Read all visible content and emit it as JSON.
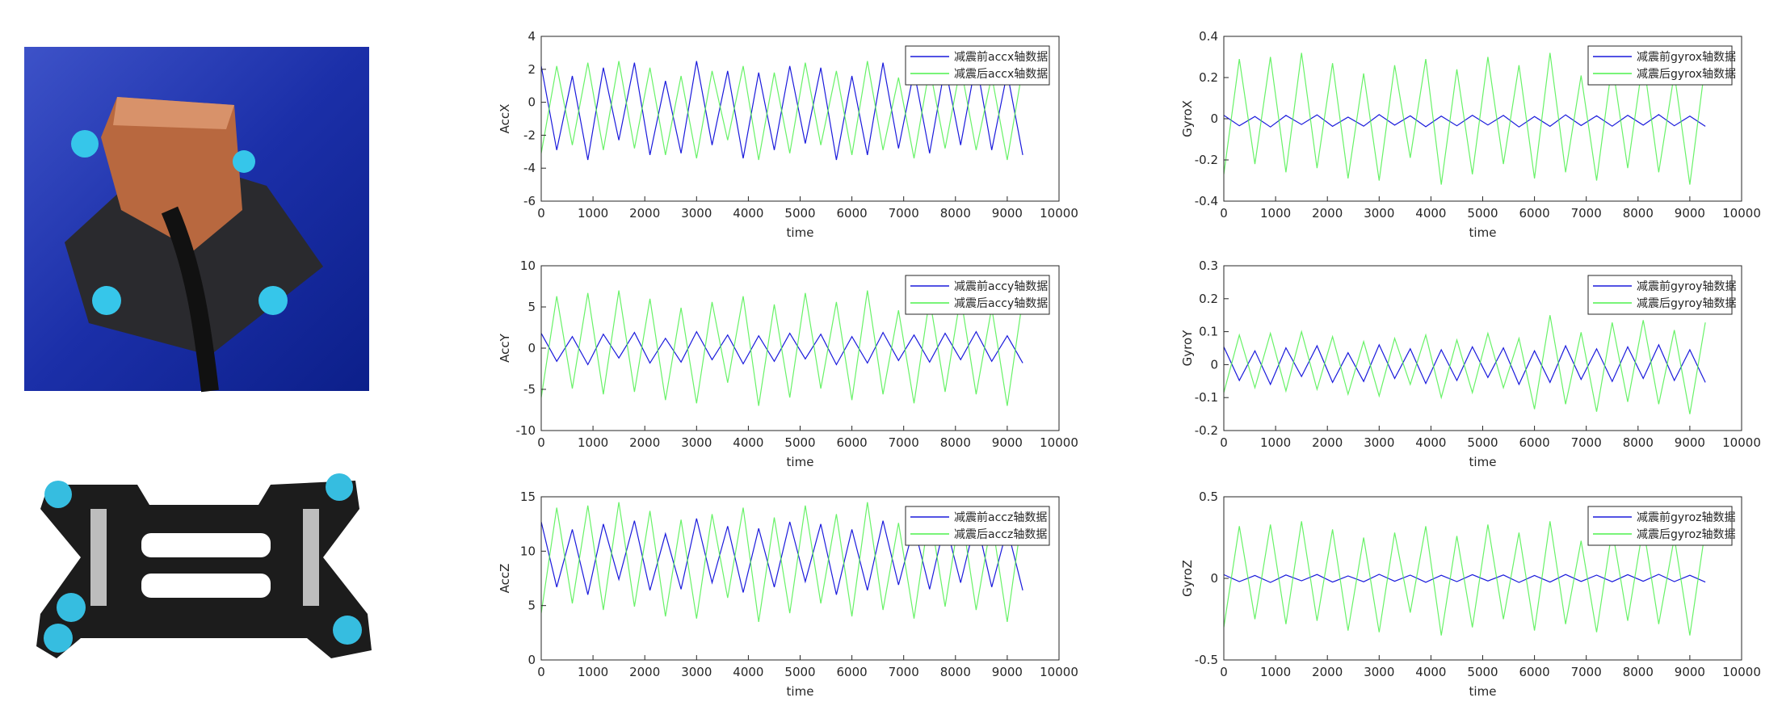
{
  "chart_data": [
    {
      "type": "line",
      "ylabel": "AccX",
      "xlabel": "time",
      "legend": "upper right",
      "x": [
        0,
        300,
        600,
        900,
        1200,
        1500,
        1800,
        2100,
        2400,
        2700,
        3000,
        3300,
        3600,
        3900,
        4200,
        4500,
        4800,
        5100,
        5400,
        5700,
        6000,
        6300,
        6600,
        6900,
        7200,
        7500,
        7800,
        8100,
        8400,
        8700,
        9000,
        9300
      ],
      "xlim": [
        0,
        10000
      ],
      "xticks": [
        0,
        1000,
        2000,
        3000,
        4000,
        5000,
        6000,
        7000,
        8000,
        9000,
        10000
      ],
      "ylim": [
        -6,
        4
      ],
      "yticks": [
        -6,
        -4,
        -2,
        0,
        2,
        4
      ],
      "series": [
        {
          "name": "减震前accx轴数据",
          "color": "#1a1adc",
          "values": [
            2.2,
            -2.9,
            1.6,
            -3.5,
            2.1,
            -2.3,
            2.4,
            -3.2,
            1.3,
            -3.1,
            2.5,
            -2.6,
            1.9,
            -3.4,
            1.8,
            -2.9,
            2.2,
            -2.5,
            2.1,
            -3.5,
            1.6,
            -3.2,
            2.4,
            -2.8,
            1.9,
            -3.1,
            2.2,
            -2.6,
            2.5,
            -2.9,
            1.8,
            -3.2
          ]
        },
        {
          "name": "减震后accx轴数据",
          "color": "#4df04d",
          "values": [
            -3.1,
            2.2,
            -2.6,
            2.4,
            -2.9,
            2.5,
            -2.8,
            2.1,
            -3.2,
            1.6,
            -3.4,
            1.9,
            -2.3,
            2.2,
            -3.5,
            1.8,
            -3.1,
            2.4,
            -2.6,
            1.9,
            -3.2,
            2.5,
            -2.9,
            1.5,
            -3.4,
            2.1,
            -2.8,
            2.2,
            -2.9,
            1.6,
            -3.5,
            2.1
          ]
        }
      ]
    },
    {
      "type": "line",
      "ylabel": "AccY",
      "xlabel": "time",
      "legend": "upper right",
      "x": [
        0,
        300,
        600,
        900,
        1200,
        1500,
        1800,
        2100,
        2400,
        2700,
        3000,
        3300,
        3600,
        3900,
        4200,
        4500,
        4800,
        5100,
        5400,
        5700,
        6000,
        6300,
        6600,
        6900,
        7200,
        7500,
        7800,
        8100,
        8400,
        8700,
        9000,
        9300
      ],
      "xlim": [
        0,
        10000
      ],
      "xticks": [
        0,
        1000,
        2000,
        3000,
        4000,
        5000,
        6000,
        7000,
        8000,
        9000,
        10000
      ],
      "ylim": [
        -10,
        10
      ],
      "yticks": [
        -10,
        -5,
        0,
        5,
        10
      ],
      "series": [
        {
          "name": "减震前accy轴数据",
          "color": "#1a1adc",
          "values": [
            1.8,
            -1.6,
            1.4,
            -2,
            1.7,
            -1.2,
            1.9,
            -1.8,
            1.2,
            -1.7,
            2,
            -1.4,
            1.6,
            -1.9,
            1.5,
            -1.6,
            1.8,
            -1.3,
            1.7,
            -2,
            1.4,
            -1.8,
            1.9,
            -1.5,
            1.6,
            -1.7,
            1.8,
            -1.4,
            2,
            -1.6,
            1.5,
            -1.8
          ]
        },
        {
          "name": "减震后accy轴数据",
          "color": "#4df04d",
          "values": [
            -6,
            6.3,
            -4.9,
            6.7,
            -5.6,
            7,
            -5.3,
            6,
            -6.3,
            4.9,
            -6.7,
            5.6,
            -4.2,
            6.3,
            -7,
            5.3,
            -6,
            6.7,
            -4.9,
            5.6,
            -6.3,
            7,
            -5.6,
            4.6,
            -6.7,
            6,
            -5.3,
            6.3,
            -5.6,
            4.9,
            -7,
            6
          ]
        }
      ]
    },
    {
      "type": "line",
      "ylabel": "AccZ",
      "xlabel": "time",
      "legend": "upper right",
      "x": [
        0,
        300,
        600,
        900,
        1200,
        1500,
        1800,
        2100,
        2400,
        2700,
        3000,
        3300,
        3600,
        3900,
        4200,
        4500,
        4800,
        5100,
        5400,
        5700,
        6000,
        6300,
        6600,
        6900,
        7200,
        7500,
        7800,
        8100,
        8400,
        8700,
        9000,
        9300
      ],
      "xlim": [
        0,
        10000
      ],
      "xticks": [
        0,
        1000,
        2000,
        3000,
        4000,
        5000,
        6000,
        7000,
        8000,
        9000,
        10000
      ],
      "ylim": [
        0,
        15
      ],
      "yticks": [
        0,
        5,
        10,
        15
      ],
      "series": [
        {
          "name": "减震前accz轴数据",
          "color": "#1a1adc",
          "values": [
            12.7,
            6.7,
            12,
            6,
            12.5,
            7.4,
            12.8,
            6.4,
            11.6,
            6.5,
            13,
            7.1,
            12.3,
            6.2,
            12.1,
            6.7,
            12.7,
            7.2,
            12.5,
            6,
            12,
            6.4,
            12.8,
            6.9,
            12.3,
            6.5,
            12.7,
            7.1,
            13,
            6.7,
            12.1,
            6.4
          ]
        },
        {
          "name": "减震后accz轴数据",
          "color": "#4df04d",
          "values": [
            4.3,
            14,
            5.2,
            14.2,
            4.6,
            14.5,
            4.9,
            13.7,
            4,
            12.9,
            3.8,
            13.4,
            5.7,
            14,
            3.5,
            13.1,
            4.3,
            14.2,
            5.2,
            13.4,
            4,
            14.5,
            4.6,
            12.6,
            3.8,
            13.7,
            4.9,
            14,
            4.6,
            12.9,
            3.5,
            13.7
          ]
        }
      ]
    },
    {
      "type": "line",
      "ylabel": "GyroX",
      "xlabel": "time",
      "legend": "upper right",
      "x": [
        0,
        300,
        600,
        900,
        1200,
        1500,
        1800,
        2100,
        2400,
        2700,
        3000,
        3300,
        3600,
        3900,
        4200,
        4500,
        4800,
        5100,
        5400,
        5700,
        6000,
        6300,
        6600,
        6900,
        7200,
        7500,
        7800,
        8100,
        8400,
        8700,
        9000,
        9300
      ],
      "xlim": [
        0,
        10000
      ],
      "xticks": [
        0,
        1000,
        2000,
        3000,
        4000,
        5000,
        6000,
        7000,
        8000,
        9000,
        10000
      ],
      "ylim": [
        -0.4,
        0.4
      ],
      "yticks": [
        -0.4,
        -0.2,
        0,
        0.2,
        0.4
      ],
      "series": [
        {
          "name": "减震前gyrox轴数据",
          "color": "#1a1adc",
          "values": [
            0.017,
            -0.034,
            0.011,
            -0.04,
            0.016,
            -0.028,
            0.019,
            -0.037,
            0.008,
            -0.036,
            0.02,
            -0.031,
            0.014,
            -0.039,
            0.013,
            -0.034,
            0.017,
            -0.03,
            0.016,
            -0.04,
            0.011,
            -0.037,
            0.019,
            -0.033,
            0.014,
            -0.036,
            0.017,
            -0.031,
            0.02,
            -0.034,
            0.013,
            -0.037
          ]
        },
        {
          "name": "减震后gyrox轴数据",
          "color": "#4df04d",
          "values": [
            -0.27,
            0.29,
            -0.22,
            0.3,
            -0.26,
            0.32,
            -0.24,
            0.27,
            -0.29,
            0.22,
            -0.3,
            0.26,
            -0.19,
            0.29,
            -0.32,
            0.24,
            -0.27,
            0.3,
            -0.22,
            0.26,
            -0.29,
            0.32,
            -0.26,
            0.21,
            -0.3,
            0.27,
            -0.24,
            0.29,
            -0.26,
            0.22,
            -0.32,
            0.27
          ]
        }
      ]
    },
    {
      "type": "line",
      "ylabel": "GyroY",
      "xlabel": "time",
      "legend": "upper right",
      "x": [
        0,
        300,
        600,
        900,
        1200,
        1500,
        1800,
        2100,
        2400,
        2700,
        3000,
        3300,
        3600,
        3900,
        4200,
        4500,
        4800,
        5100,
        5400,
        5700,
        6000,
        6300,
        6600,
        6900,
        7200,
        7500,
        7800,
        8100,
        8400,
        8700,
        9000,
        9300
      ],
      "xlim": [
        0,
        10000
      ],
      "xticks": [
        0,
        1000,
        2000,
        3000,
        4000,
        5000,
        6000,
        7000,
        8000,
        9000,
        10000
      ],
      "ylim": [
        -0.2,
        0.3
      ],
      "yticks": [
        -0.2,
        -0.1,
        0,
        0.1,
        0.2,
        0.3
      ],
      "series": [
        {
          "name": "减震前gyroy轴数据",
          "color": "#1a1adc",
          "values": [
            0.054,
            -0.048,
            0.042,
            -0.06,
            0.051,
            -0.036,
            0.057,
            -0.054,
            0.036,
            -0.051,
            0.06,
            -0.042,
            0.048,
            -0.057,
            0.045,
            -0.048,
            0.054,
            -0.039,
            0.051,
            -0.06,
            0.042,
            -0.054,
            0.057,
            -0.045,
            0.048,
            -0.051,
            0.054,
            -0.042,
            0.06,
            -0.048,
            0.045,
            -0.054
          ]
        },
        {
          "name": "减震后gyroy轴数据",
          "color": "#4df04d",
          "values": [
            -0.085,
            0.09,
            -0.07,
            0.095,
            -0.08,
            0.1,
            -0.075,
            0.085,
            -0.09,
            0.07,
            -0.095,
            0.08,
            -0.06,
            0.09,
            -0.1,
            0.075,
            -0.085,
            0.095,
            -0.07,
            0.08,
            -0.135,
            0.15,
            -0.12,
            0.098,
            -0.143,
            0.128,
            -0.113,
            0.135,
            -0.12,
            0.105,
            -0.15,
            0.128
          ]
        }
      ]
    },
    {
      "type": "line",
      "ylabel": "GyroZ",
      "xlabel": "time",
      "legend": "upper right",
      "x": [
        0,
        300,
        600,
        900,
        1200,
        1500,
        1800,
        2100,
        2400,
        2700,
        3000,
        3300,
        3600,
        3900,
        4200,
        4500,
        4800,
        5100,
        5400,
        5700,
        6000,
        6300,
        6600,
        6900,
        7200,
        7500,
        7800,
        8100,
        8400,
        8700,
        9000,
        9300
      ],
      "xlim": [
        0,
        10000
      ],
      "xticks": [
        0,
        1000,
        2000,
        3000,
        4000,
        5000,
        6000,
        7000,
        8000,
        9000,
        10000
      ],
      "ylim": [
        -0.5,
        0.5
      ],
      "yticks": [
        -0.5,
        0,
        0.5
      ],
      "series": [
        {
          "name": "减震前gyroz轴数据",
          "color": "#1a1adc",
          "values": [
            0.023,
            -0.02,
            0.018,
            -0.025,
            0.021,
            -0.015,
            0.024,
            -0.023,
            0.015,
            -0.021,
            0.025,
            -0.018,
            0.02,
            -0.024,
            0.019,
            -0.02,
            0.023,
            -0.016,
            0.021,
            -0.025,
            0.018,
            -0.023,
            0.024,
            -0.019,
            0.02,
            -0.021,
            0.023,
            -0.018,
            0.025,
            -0.02,
            0.019,
            -0.023
          ]
        },
        {
          "name": "减震后gyroz轴数据",
          "color": "#4df04d",
          "values": [
            -0.3,
            0.32,
            -0.25,
            0.33,
            -0.28,
            0.35,
            -0.26,
            0.3,
            -0.32,
            0.25,
            -0.33,
            0.28,
            -0.21,
            0.32,
            -0.35,
            0.26,
            -0.3,
            0.33,
            -0.25,
            0.28,
            -0.32,
            0.35,
            -0.28,
            0.23,
            -0.33,
            0.3,
            -0.26,
            0.32,
            -0.28,
            0.25,
            -0.35,
            0.3
          ]
        }
      ]
    }
  ]
}
